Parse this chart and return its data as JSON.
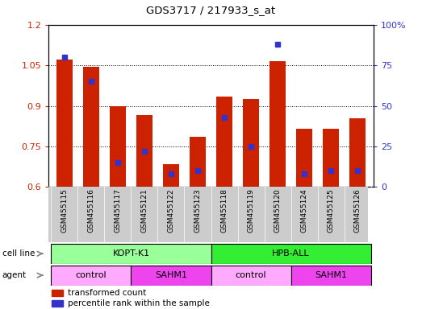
{
  "title": "GDS3717 / 217933_s_at",
  "samples": [
    "GSM455115",
    "GSM455116",
    "GSM455117",
    "GSM455121",
    "GSM455122",
    "GSM455123",
    "GSM455118",
    "GSM455119",
    "GSM455120",
    "GSM455124",
    "GSM455125",
    "GSM455126"
  ],
  "red_values": [
    1.07,
    1.045,
    0.9,
    0.865,
    0.685,
    0.785,
    0.935,
    0.925,
    1.065,
    0.815,
    0.815,
    0.855
  ],
  "blue_values_pct": [
    80,
    65,
    15,
    22,
    8,
    10,
    43,
    25,
    88,
    8,
    10,
    10
  ],
  "ylim_left": [
    0.6,
    1.2
  ],
  "ylim_right": [
    0,
    100
  ],
  "yticks_left": [
    0.6,
    0.75,
    0.9,
    1.05,
    1.2
  ],
  "ytick_labels_left": [
    "0.6",
    "0.75",
    "0.9",
    "1.05",
    "1.2"
  ],
  "yticks_right": [
    0,
    25,
    50,
    75,
    100
  ],
  "ytick_labels_right": [
    "0",
    "25",
    "50",
    "75",
    "100%"
  ],
  "red_color": "#CC2200",
  "blue_color": "#3333CC",
  "bar_width": 0.6,
  "cell_line_groups": [
    {
      "label": "KOPT-K1",
      "start": 0,
      "end": 6,
      "color": "#99FF99"
    },
    {
      "label": "HPB-ALL",
      "start": 6,
      "end": 12,
      "color": "#33EE33"
    }
  ],
  "agent_groups": [
    {
      "label": "control",
      "start": 0,
      "end": 3,
      "color": "#FFAAFF"
    },
    {
      "label": "SAHM1",
      "start": 3,
      "end": 6,
      "color": "#EE44EE"
    },
    {
      "label": "control",
      "start": 6,
      "end": 9,
      "color": "#FFAAFF"
    },
    {
      "label": "SAHM1",
      "start": 9,
      "end": 12,
      "color": "#EE44EE"
    }
  ],
  "legend_items": [
    {
      "label": "transformed count",
      "color": "#CC2200"
    },
    {
      "label": "percentile rank within the sample",
      "color": "#3333CC"
    }
  ],
  "cell_line_label": "cell line",
  "agent_label": "agent",
  "bg_color": "#FFFFFF",
  "tick_area_bg": "#CCCCCC"
}
